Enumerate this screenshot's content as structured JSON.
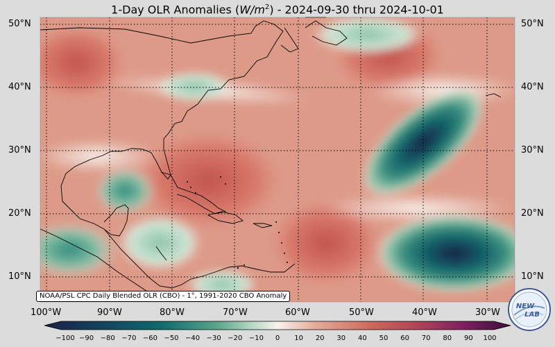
{
  "title": {
    "prefix": "1-Day OLR Anomalies (",
    "unit_base": "W/m",
    "unit_exp": "2",
    "suffix": ") - 2024-09-30 thru 2024-10-01"
  },
  "map": {
    "lon_range": [
      -102,
      -26
    ],
    "lat_range": [
      6.5,
      51.2
    ],
    "grid_step_deg": 10,
    "lat_labels": [
      "50°N",
      "40°N",
      "30°N",
      "20°N",
      "10°N"
    ],
    "lon_labels": [
      "100°W",
      "90°W",
      "80°W",
      "70°W",
      "60°W",
      "50°W",
      "40°W",
      "30°W"
    ],
    "gridlines": "dotted",
    "land_outline_color": "#000000"
  },
  "anomaly_features": [
    {
      "kind": "negative",
      "lon": -42,
      "lat": 29,
      "value": -95
    },
    {
      "kind": "negative",
      "lon": -37,
      "lat": 13,
      "value": -95
    },
    {
      "kind": "negative",
      "lon": -90,
      "lat": 22,
      "value": -45
    },
    {
      "kind": "negative",
      "lon": -93,
      "lat": 13,
      "value": -55
    },
    {
      "kind": "negative",
      "lon": -48,
      "lat": 49,
      "value": -30
    },
    {
      "kind": "negative",
      "lon": -73,
      "lat": 40,
      "value": -25
    },
    {
      "kind": "positive",
      "lon": -72,
      "lat": 28,
      "value": 45
    },
    {
      "kind": "positive",
      "lon": -60,
      "lat": 13,
      "value": 40
    },
    {
      "kind": "positive",
      "lon": -100,
      "lat": 42,
      "value": 40
    }
  ],
  "credit": "NOAA/PSL CPC Daily Blended OLR (CBO) - 1°, 1991-2020 CBO Anomaly",
  "colorbar": {
    "min": -100,
    "max": 100,
    "ticks": [
      "−100",
      "−90",
      "−80",
      "−70",
      "−60",
      "−50",
      "−40",
      "−30",
      "−20",
      "−10",
      "0",
      "10",
      "20",
      "30",
      "40",
      "50",
      "60",
      "70",
      "80",
      "90",
      "100"
    ],
    "colors": {
      "-100": "#1b1f45",
      "-75": "#0f5c66",
      "-50": "#3a9080",
      "-25": "#9fcbb0",
      "0": "#f7f2ee",
      "25": "#e6a898",
      "50": "#c85a52",
      "75": "#9a2866",
      "100": "#3a0e3a"
    }
  },
  "logo": {
    "text_top": "NEW",
    "text_bottom": "LAB"
  }
}
